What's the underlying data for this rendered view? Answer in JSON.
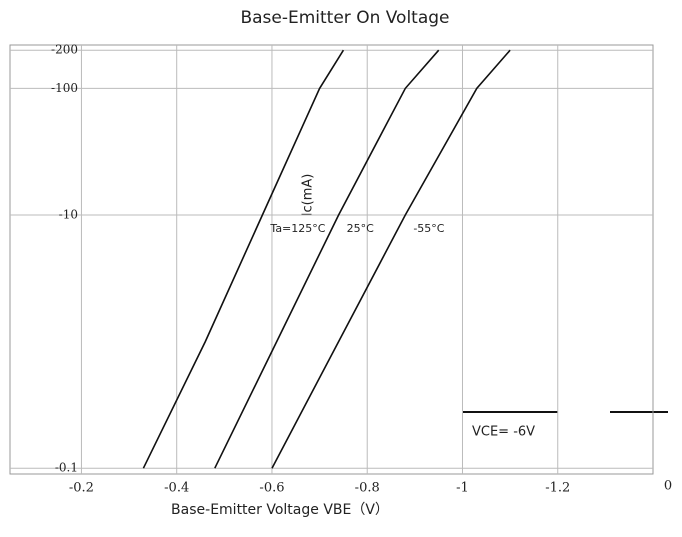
{
  "chart_data": {
    "type": "line",
    "title": "Base-Emitter On Voltage",
    "x_label": "Base-Emitter Voltage  VBE（V）",
    "y_label": "Ic(mA)",
    "annotations": [
      "VCE= -6V",
      "0"
    ],
    "log_y": true,
    "grid": true,
    "xlim": [
      -0.05,
      -1.4
    ],
    "xticks": [
      -0.2,
      -0.4,
      -0.6,
      -0.8,
      -1,
      -1.2
    ],
    "ylim": [
      -0.09,
      -220
    ],
    "yticks": [
      -0.1,
      -10,
      -100,
      -200
    ],
    "series": [
      {
        "name": "Ta=125°C",
        "color": "#111111",
        "x": [
          -0.33,
          -0.46,
          -0.58,
          -0.7,
          -0.75
        ],
        "values": [
          -0.1,
          -1,
          -10,
          -100,
          -200
        ]
      },
      {
        "name": "25°C",
        "color": "#111111",
        "x": [
          -0.48,
          -0.61,
          -0.74,
          -0.88,
          -0.95
        ],
        "values": [
          -0.1,
          -1,
          -10,
          -100,
          -200
        ]
      },
      {
        "name": "-55°C",
        "color": "#111111",
        "x": [
          -0.6,
          -0.74,
          -0.88,
          -1.03,
          -1.1
        ],
        "values": [
          -0.1,
          -1,
          -10,
          -100,
          -200
        ]
      }
    ]
  }
}
